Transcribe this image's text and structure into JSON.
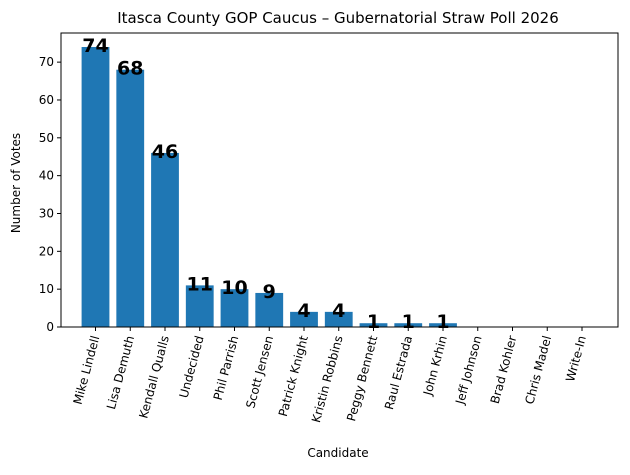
{
  "chart_data": {
    "type": "bar",
    "title": "Itasca County GOP Caucus – Gubernatorial Straw Poll 2026",
    "xlabel": "Candidate",
    "ylabel": "Number of Votes",
    "categories": [
      "Mike Lindell",
      "Lisa Demuth",
      "Kendall Qualls",
      "Undecided",
      "Phil Parrish",
      "Scott Jensen",
      "Patrick Knight",
      "Kristin Robbins",
      "Peggy Bennett",
      "Raul Estrada",
      "John Krhin",
      "Jeff Johnson",
      "Brad Kohler",
      "Chris Madel",
      "Write-In"
    ],
    "values": [
      74,
      68,
      46,
      11,
      10,
      9,
      4,
      4,
      1,
      1,
      1,
      0,
      0,
      0,
      0
    ],
    "data_labels": [
      "74",
      "68",
      "46",
      "11",
      "10",
      "9",
      "4",
      "4",
      "1",
      "1",
      "1",
      "",
      "",
      "",
      ""
    ],
    "ylim": [
      0,
      77.7
    ],
    "yticks": [
      0,
      10,
      20,
      30,
      40,
      50,
      60,
      70
    ],
    "grid": false,
    "bar_color": "#1f77b4"
  }
}
